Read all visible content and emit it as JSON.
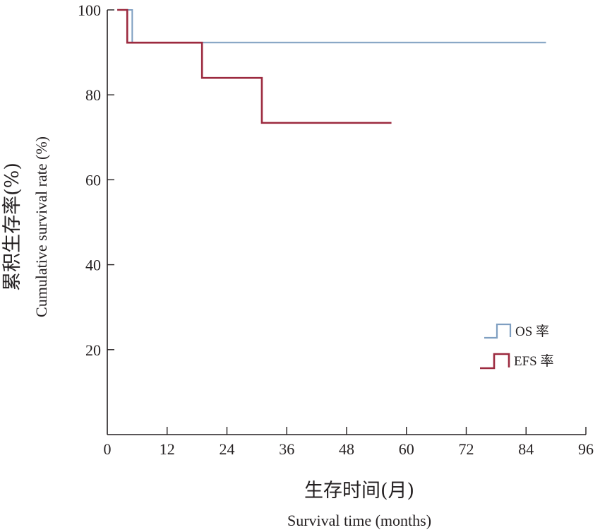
{
  "chart_data": {
    "type": "line",
    "step": true,
    "xlabel_cn": "生存时间(月)",
    "xlabel_en": "Survival time (months)",
    "ylabel_cn": "累积生存率(%)",
    "ylabel_en": "Cumulative survival rate (%)",
    "xlim": [
      0,
      96
    ],
    "ylim": [
      0,
      100
    ],
    "xticks": [
      0,
      12,
      24,
      36,
      48,
      60,
      72,
      84,
      96
    ],
    "yticks": [
      20,
      40,
      60,
      80,
      100
    ],
    "grid": false,
    "legend": "right",
    "series": [
      {
        "name": "OS 率",
        "color": "#7f9fc1",
        "x": [
          2,
          5,
          88
        ],
        "y": [
          100,
          92.3,
          92.3
        ]
      },
      {
        "name": "EFS 率",
        "color": "#9c2a3f",
        "x": [
          2,
          4,
          19,
          31,
          57
        ],
        "y": [
          100,
          92.3,
          84.0,
          73.4,
          73.4
        ]
      }
    ]
  }
}
